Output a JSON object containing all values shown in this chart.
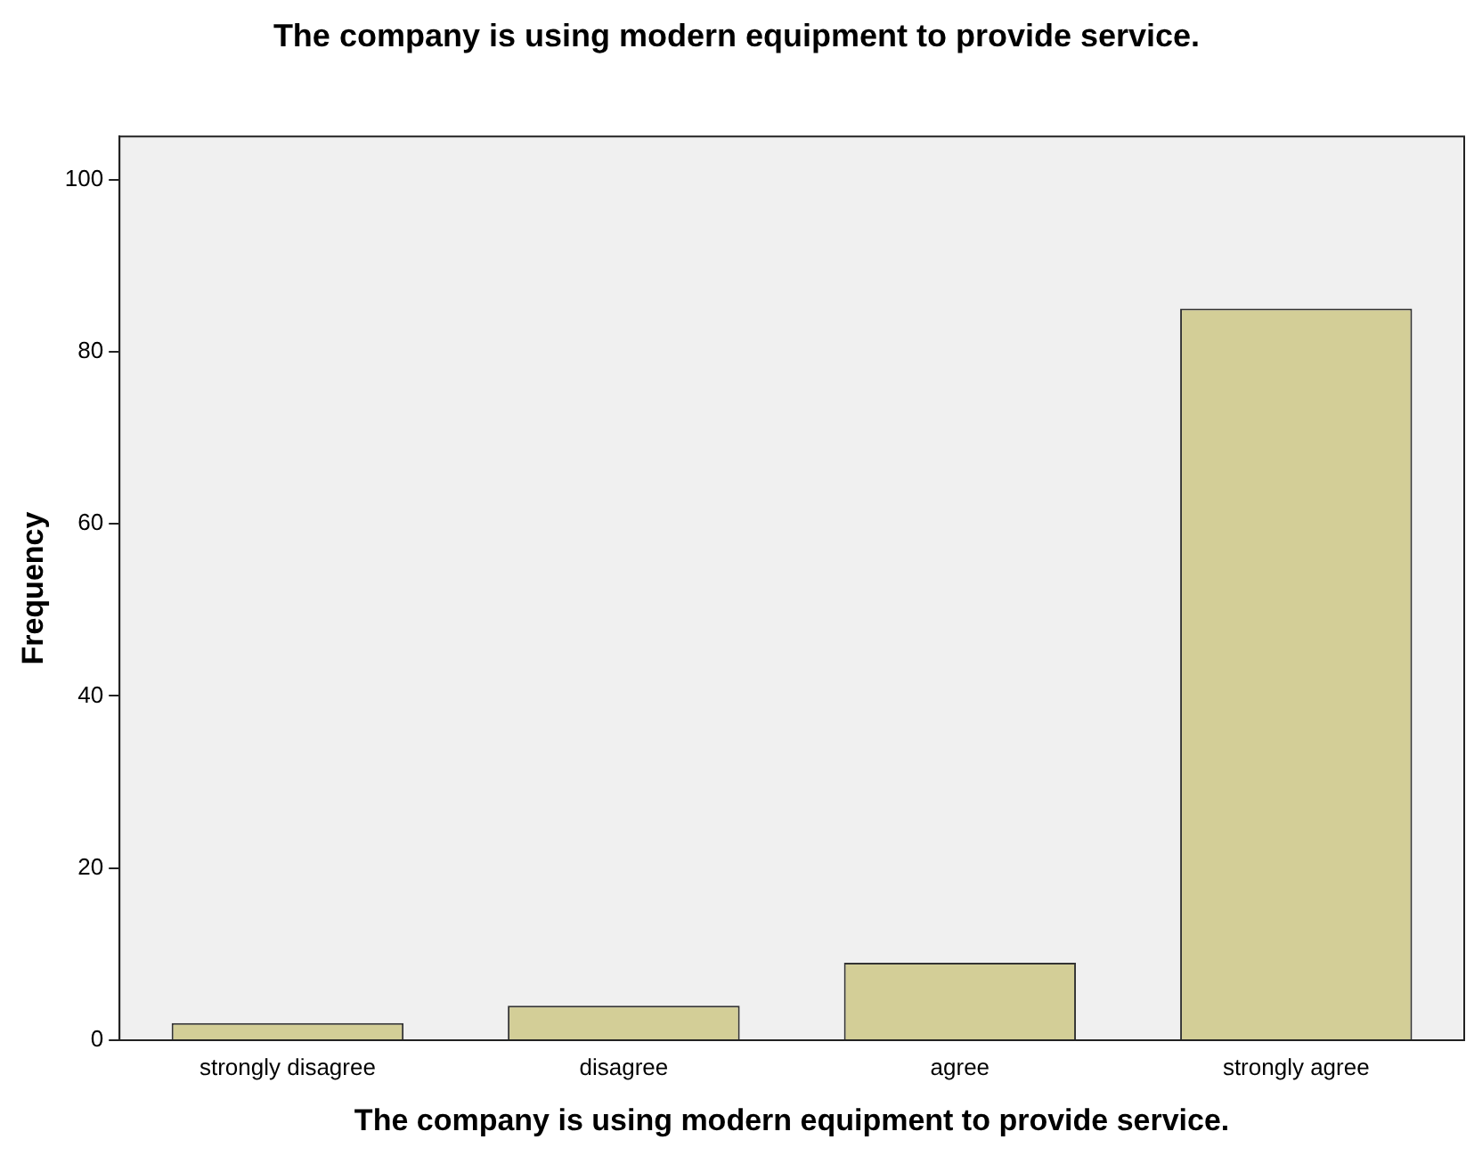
{
  "chart_data": {
    "type": "bar",
    "title": "The company is using modern equipment to provide service.",
    "xlabel": "The company is using modern equipment to provide service.",
    "ylabel": "Frequency",
    "categories": [
      "strongly disagree",
      "disagree",
      "agree",
      "strongly agree"
    ],
    "values": [
      2,
      4,
      9,
      85
    ],
    "color": "#d3ce97",
    "ylim": [
      0,
      105
    ],
    "yticks": [
      0,
      20,
      40,
      60,
      80,
      100
    ],
    "grid": false,
    "legend": false
  }
}
